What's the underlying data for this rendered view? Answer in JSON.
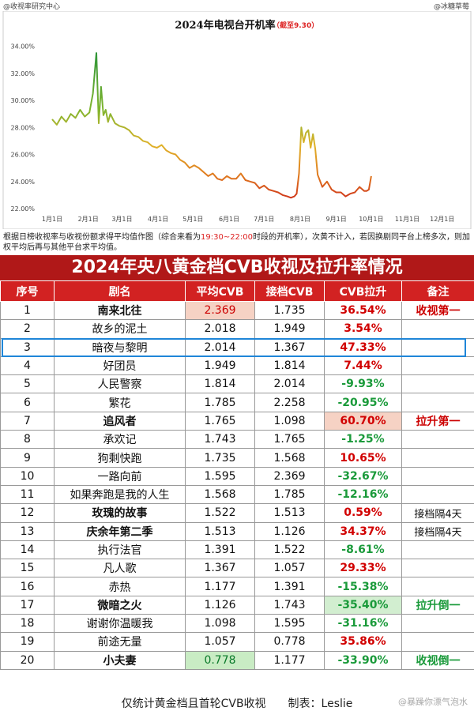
{
  "watermarks": {
    "left": "@收视率研究中心",
    "right": "@冰糖草莓",
    "bottom": "@暴躁你漂气泡水"
  },
  "chart_data": {
    "type": "line",
    "title": "2024年电视台开机率",
    "title_note": "（截至9.30）",
    "y_ticks": [
      "22.00%",
      "24.00%",
      "26.00%",
      "28.00%",
      "30.00%",
      "32.00%",
      "34.00%"
    ],
    "x_ticks": [
      "1月1日",
      "2月1日",
      "3月1日",
      "4月1日",
      "5月1日",
      "6月1日",
      "7月1日",
      "8月1日",
      "9月1日",
      "10月1日",
      "11月1日",
      "12月1日"
    ],
    "x_tick_days": [
      0,
      31,
      60,
      91,
      121,
      152,
      182,
      213,
      244,
      274,
      305,
      335
    ],
    "ylim": [
      22,
      34.5
    ],
    "xlim": [
      0,
      365
    ],
    "grid": false,
    "x": [
      0,
      4,
      8,
      12,
      16,
      20,
      24,
      28,
      32,
      35,
      38,
      40,
      42,
      44,
      46,
      48,
      50,
      54,
      58,
      62,
      66,
      70,
      74,
      78,
      82,
      86,
      90,
      94,
      98,
      102,
      106,
      110,
      114,
      118,
      122,
      126,
      130,
      134,
      138,
      142,
      146,
      150,
      154,
      158,
      162,
      166,
      170,
      174,
      178,
      182,
      186,
      190,
      194,
      198,
      202,
      205,
      208,
      210,
      212,
      214,
      216,
      218,
      220,
      222,
      224,
      226,
      228,
      232,
      236,
      240,
      244,
      248,
      252,
      256,
      260,
      264,
      268,
      270,
      272,
      274
    ],
    "y": [
      28.6,
      28.2,
      28.8,
      28.4,
      29.0,
      28.7,
      29.3,
      28.8,
      29.1,
      30.5,
      33.5,
      28.3,
      31.0,
      28.9,
      29.3,
      28.4,
      29.0,
      28.3,
      28.1,
      28.0,
      27.8,
      27.4,
      27.3,
      27.0,
      26.9,
      26.6,
      26.5,
      26.7,
      26.3,
      26.1,
      26.0,
      25.6,
      25.4,
      25.0,
      25.2,
      25.0,
      24.7,
      24.4,
      24.6,
      24.2,
      24.1,
      24.4,
      24.2,
      24.2,
      24.6,
      24.1,
      24.0,
      23.9,
      23.5,
      23.7,
      23.4,
      23.3,
      23.2,
      23.0,
      22.9,
      22.8,
      22.9,
      23.1,
      24.6,
      28.0,
      26.9,
      27.6,
      27.8,
      26.5,
      27.5,
      26.4,
      24.5,
      23.6,
      24.0,
      23.4,
      23.2,
      23.2,
      22.9,
      23.1,
      23.2,
      23.6,
      23.3,
      23.3,
      23.4,
      24.4
    ]
  },
  "note": {
    "part1": "根据日榜收视率与收视份额求得平均值作图（综合来看为",
    "highlight": "19:30~22:00",
    "part2": "时段的开机率），次黄不计入，若因换剧同平台上榜多次，则加权平均后再与其他平台求平均值。"
  },
  "table": {
    "title": "2024年央八黄金档CVB收视及拉升率情况",
    "headers": [
      "序号",
      "剧名",
      "平均CVB",
      "接档CVB",
      "CVB拉升",
      "备注"
    ],
    "rows": [
      {
        "no": "1",
        "name": "南来北往",
        "avg": "2.369",
        "prev": "1.735",
        "lift": "36.54%",
        "note": "收视第一"
      },
      {
        "no": "2",
        "name": "故乡的泥土",
        "avg": "2.018",
        "prev": "1.949",
        "lift": "3.54%",
        "note": ""
      },
      {
        "no": "3",
        "name": "暗夜与黎明",
        "avg": "2.014",
        "prev": "1.367",
        "lift": "47.33%",
        "note": ""
      },
      {
        "no": "4",
        "name": "好团员",
        "avg": "1.949",
        "prev": "1.814",
        "lift": "7.44%",
        "note": ""
      },
      {
        "no": "5",
        "name": "人民警察",
        "avg": "1.814",
        "prev": "2.014",
        "lift": "-9.93%",
        "note": ""
      },
      {
        "no": "6",
        "name": "繁花",
        "avg": "1.785",
        "prev": "2.258",
        "lift": "-20.95%",
        "note": ""
      },
      {
        "no": "7",
        "name": "追风者",
        "avg": "1.765",
        "prev": "1.098",
        "lift": "60.70%",
        "note": "拉升第一"
      },
      {
        "no": "8",
        "name": "承欢记",
        "avg": "1.743",
        "prev": "1.765",
        "lift": "-1.25%",
        "note": ""
      },
      {
        "no": "9",
        "name": "狗剩快跑",
        "avg": "1.735",
        "prev": "1.568",
        "lift": "10.65%",
        "note": ""
      },
      {
        "no": "10",
        "name": "一路向前",
        "avg": "1.595",
        "prev": "2.369",
        "lift": "-32.67%",
        "note": ""
      },
      {
        "no": "11",
        "name": "如果奔跑是我的人生",
        "avg": "1.568",
        "prev": "1.785",
        "lift": "-12.16%",
        "note": ""
      },
      {
        "no": "12",
        "name": "玫瑰的故事",
        "avg": "1.522",
        "prev": "1.513",
        "lift": "0.59%",
        "note": "接档隔4天"
      },
      {
        "no": "13",
        "name": "庆余年第二季",
        "avg": "1.513",
        "prev": "1.126",
        "lift": "34.37%",
        "note": "接档隔4天"
      },
      {
        "no": "14",
        "name": "执行法官",
        "avg": "1.391",
        "prev": "1.522",
        "lift": "-8.61%",
        "note": ""
      },
      {
        "no": "15",
        "name": "凡人歌",
        "avg": "1.367",
        "prev": "1.057",
        "lift": "29.33%",
        "note": ""
      },
      {
        "no": "16",
        "name": "赤热",
        "avg": "1.177",
        "prev": "1.391",
        "lift": "-15.38%",
        "note": ""
      },
      {
        "no": "17",
        "name": "微暗之火",
        "avg": "1.126",
        "prev": "1.743",
        "lift": "-35.40%",
        "note": "拉升倒一"
      },
      {
        "no": "18",
        "name": "谢谢你温暖我",
        "avg": "1.098",
        "prev": "1.595",
        "lift": "-31.16%",
        "note": ""
      },
      {
        "no": "19",
        "name": "前途无量",
        "avg": "1.057",
        "prev": "0.778",
        "lift": "35.86%",
        "note": ""
      },
      {
        "no": "20",
        "name": "小夫妻",
        "avg": "0.778",
        "prev": "1.177",
        "lift": "-33.90%",
        "note": "收视倒一"
      }
    ],
    "selected_row": "3"
  },
  "footer": "仅统计黄金档且首轮CVB收视　　制表：Leslie",
  "colors": {
    "header_red": "#d22222",
    "title_red": "#b01818",
    "positive": "#d10000",
    "negative": "#1a9a3a",
    "select_blue": "#1f86d8"
  }
}
